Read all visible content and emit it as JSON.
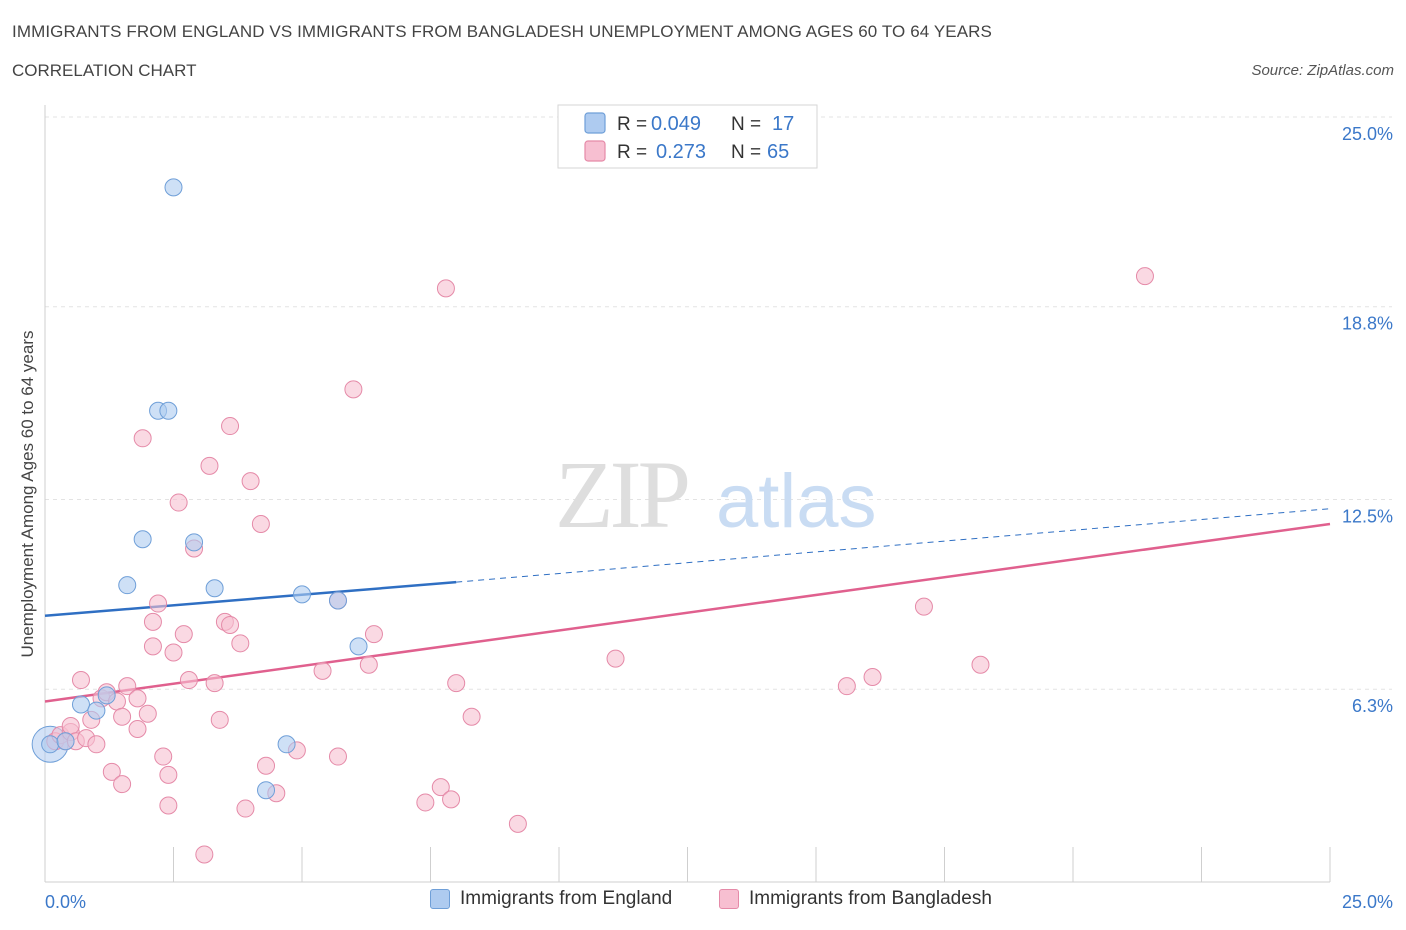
{
  "title": "IMMIGRANTS FROM ENGLAND VS IMMIGRANTS FROM BANGLADESH UNEMPLOYMENT AMONG AGES 60 TO 64 YEARS",
  "subtitle": "CORRELATION CHART",
  "source": "Source: ZipAtlas.com",
  "watermark": {
    "zip": "ZIP",
    "atlas": "atlas"
  },
  "colors": {
    "england_fill": "#aecbf0",
    "england_stroke": "#6f9fd8",
    "england_line": "#2f6fc3",
    "bangladesh_fill": "#f7bfd1",
    "bangladesh_stroke": "#e58aa8",
    "bangladesh_line": "#e0608e",
    "value_text": "#3b78c9",
    "grid": "#e3e3e3"
  },
  "legend_stats": [
    {
      "r_label": "R =",
      "r_value": "0.049",
      "n_label": "N =",
      "n_value": "17"
    },
    {
      "r_label": "R =",
      "r_value": "0.273",
      "n_label": "N =",
      "n_value": "65"
    }
  ],
  "chart_data": {
    "type": "scatter",
    "title": "IMMIGRANTS FROM ENGLAND VS IMMIGRANTS FROM BANGLADESH UNEMPLOYMENT AMONG AGES 60 TO 64 YEARS",
    "subtitle": "CORRELATION CHART",
    "ylabel": "Unemployment Among Ages 60 to 64 years",
    "xlabel": "",
    "xlim": [
      0,
      25
    ],
    "ylim": [
      0,
      25
    ],
    "x_tick_labels": [
      "0.0%",
      "25.0%"
    ],
    "y_tick_values": [
      6.3,
      12.5,
      18.8,
      25.0
    ],
    "y_tick_labels": [
      "6.3%",
      "12.5%",
      "18.8%",
      "25.0%"
    ],
    "grid": true,
    "legend_placement": "bottom",
    "series": [
      {
        "name": "Immigrants from England",
        "r": 0.049,
        "n": 17,
        "trend": {
          "x0": 0,
          "y0": 8.7,
          "x1": 8,
          "y1": 9.8,
          "dashed_to_x": 25,
          "dashed_to_y": 12.2
        },
        "points": [
          [
            0.1,
            4.5
          ],
          [
            0.4,
            4.6
          ],
          [
            0.7,
            5.8
          ],
          [
            1.0,
            5.6
          ],
          [
            1.2,
            6.1
          ],
          [
            1.6,
            9.7
          ],
          [
            1.9,
            11.2
          ],
          [
            2.2,
            15.4
          ],
          [
            2.4,
            15.4
          ],
          [
            2.5,
            22.7
          ],
          [
            2.9,
            11.1
          ],
          [
            3.3,
            9.6
          ],
          [
            4.3,
            3.0
          ],
          [
            4.7,
            4.5
          ],
          [
            5.0,
            9.4
          ],
          [
            5.7,
            9.2
          ],
          [
            6.1,
            7.7
          ]
        ]
      },
      {
        "name": "Immigrants from Bangladesh",
        "r": 0.273,
        "n": 65,
        "trend": {
          "x0": 0,
          "y0": 5.9,
          "x1": 25,
          "y1": 11.7
        },
        "points": [
          [
            0.2,
            4.6
          ],
          [
            0.3,
            4.8
          ],
          [
            0.4,
            4.6
          ],
          [
            0.5,
            4.9
          ],
          [
            0.5,
            5.1
          ],
          [
            0.6,
            4.6
          ],
          [
            0.7,
            6.6
          ],
          [
            0.8,
            4.7
          ],
          [
            0.9,
            5.3
          ],
          [
            1.0,
            4.5
          ],
          [
            1.1,
            6.0
          ],
          [
            1.2,
            6.2
          ],
          [
            1.3,
            3.6
          ],
          [
            1.4,
            5.9
          ],
          [
            1.5,
            3.2
          ],
          [
            1.5,
            5.4
          ],
          [
            1.6,
            6.4
          ],
          [
            1.8,
            5.0
          ],
          [
            1.8,
            6.0
          ],
          [
            1.9,
            14.5
          ],
          [
            2.0,
            5.5
          ],
          [
            2.1,
            8.5
          ],
          [
            2.1,
            7.7
          ],
          [
            2.2,
            9.1
          ],
          [
            2.4,
            2.5
          ],
          [
            2.4,
            3.5
          ],
          [
            2.5,
            7.5
          ],
          [
            2.6,
            12.4
          ],
          [
            2.7,
            8.1
          ],
          [
            2.8,
            6.6
          ],
          [
            2.9,
            10.9
          ],
          [
            3.1,
            0.9
          ],
          [
            3.2,
            13.6
          ],
          [
            3.3,
            6.5
          ],
          [
            3.4,
            5.3
          ],
          [
            3.5,
            8.5
          ],
          [
            3.6,
            14.9
          ],
          [
            3.6,
            8.4
          ],
          [
            3.8,
            7.8
          ],
          [
            4.0,
            13.1
          ],
          [
            4.2,
            11.7
          ],
          [
            4.3,
            3.8
          ],
          [
            4.5,
            2.9
          ],
          [
            4.9,
            4.3
          ],
          [
            5.4,
            6.9
          ],
          [
            5.7,
            4.1
          ],
          [
            5.7,
            9.2
          ],
          [
            6.0,
            16.1
          ],
          [
            6.3,
            7.1
          ],
          [
            6.4,
            8.1
          ],
          [
            7.4,
            2.6
          ],
          [
            7.7,
            3.1
          ],
          [
            7.8,
            19.4
          ],
          [
            7.9,
            2.7
          ],
          [
            8.0,
            6.5
          ],
          [
            8.3,
            5.4
          ],
          [
            9.2,
            1.9
          ],
          [
            11.1,
            7.3
          ],
          [
            15.6,
            6.4
          ],
          [
            16.1,
            6.7
          ],
          [
            17.1,
            9.0
          ],
          [
            18.2,
            7.1
          ],
          [
            21.4,
            19.8
          ],
          [
            2.3,
            4.1
          ],
          [
            3.9,
            2.4
          ]
        ]
      }
    ]
  },
  "bottom_legend": [
    {
      "label": "Immigrants from England"
    },
    {
      "label": "Immigrants from Bangladesh"
    }
  ]
}
